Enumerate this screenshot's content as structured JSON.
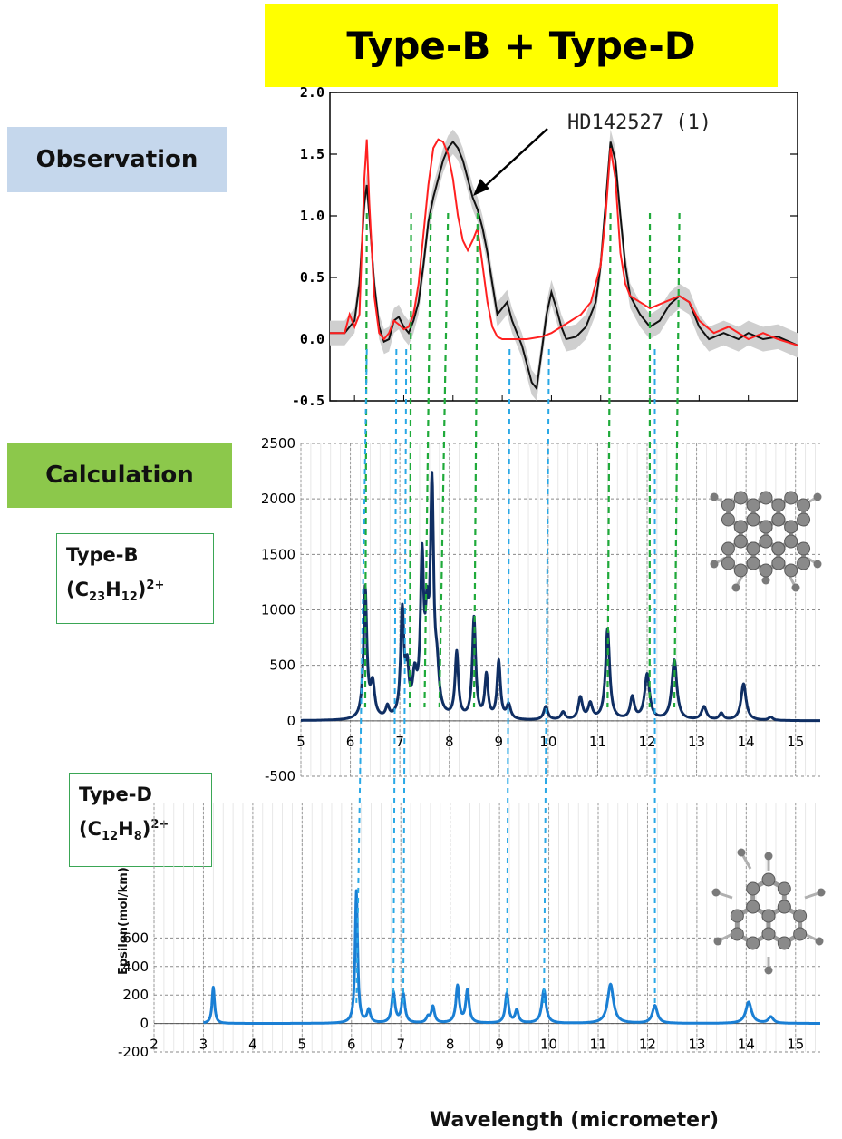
{
  "title": "Type-B +  Type-D",
  "labels": {
    "observation": "Observation",
    "calculation": "Calculation"
  },
  "molecules": {
    "type_b": {
      "name": "Type-B",
      "formula_c": "C",
      "c_count": "23",
      "formula_h": "H",
      "h_count": "12",
      "charge": "2+"
    },
    "type_d": {
      "name": "Type-D",
      "formula_c": "C",
      "c_count": "12",
      "formula_h": "H",
      "h_count": "8",
      "charge": "2+"
    }
  },
  "colors": {
    "banner": "#ffff00",
    "observation_bg": "#c5d7ec",
    "calculation_bg": "#8cc84b",
    "obs_black": "#111111",
    "obs_red": "#ff2020",
    "obs_band": "#cfcfcf",
    "type_b_line": "#0f2e63",
    "type_d_line": "#1a7fd4",
    "guide_green": "#1faa3a",
    "guide_blue": "#29a8e6"
  },
  "chart_data": [
    {
      "type": "line",
      "panel": "observation",
      "annotation": "HD142527 (1)",
      "xlim": [
        5.5,
        15.0
      ],
      "ylim": [
        -0.5,
        2.0
      ],
      "yticks": [
        "2.0",
        "1.5",
        "1.0",
        "0.5",
        "0.0",
        "-0.5"
      ],
      "ytick_values": [
        2.0,
        1.5,
        1.0,
        0.5,
        0.0,
        -0.5
      ],
      "series": [
        {
          "color": "black",
          "x": [
            5.5,
            5.8,
            6.0,
            6.1,
            6.2,
            6.25,
            6.3,
            6.4,
            6.5,
            6.6,
            6.7,
            6.8,
            6.9,
            7.0,
            7.1,
            7.2,
            7.3,
            7.4,
            7.5,
            7.6,
            7.7,
            7.8,
            7.9,
            8.0,
            8.1,
            8.2,
            8.3,
            8.4,
            8.5,
            8.6,
            8.7,
            8.8,
            8.9,
            9.0,
            9.1,
            9.2,
            9.3,
            9.4,
            9.5,
            9.6,
            9.7,
            9.8,
            9.9,
            10.0,
            10.1,
            10.2,
            10.3,
            10.5,
            10.7,
            10.9,
            11.0,
            11.1,
            11.2,
            11.3,
            11.4,
            11.5,
            11.6,
            11.8,
            12.0,
            12.2,
            12.4,
            12.6,
            12.8,
            13.0,
            13.2,
            13.5,
            13.8,
            14.0,
            14.3,
            14.6,
            15.0
          ],
          "y": [
            0.05,
            0.05,
            0.15,
            0.45,
            1.1,
            1.25,
            1.0,
            0.45,
            0.1,
            -0.02,
            0.0,
            0.15,
            0.18,
            0.1,
            0.05,
            0.15,
            0.3,
            0.6,
            0.95,
            1.15,
            1.3,
            1.45,
            1.55,
            1.6,
            1.55,
            1.45,
            1.3,
            1.15,
            1.05,
            0.9,
            0.7,
            0.45,
            0.2,
            0.25,
            0.3,
            0.15,
            0.05,
            -0.05,
            -0.2,
            -0.35,
            -0.4,
            -0.1,
            0.2,
            0.38,
            0.25,
            0.1,
            0.0,
            0.02,
            0.1,
            0.3,
            0.6,
            1.1,
            1.6,
            1.45,
            1.0,
            0.6,
            0.35,
            0.2,
            0.1,
            0.15,
            0.28,
            0.35,
            0.3,
            0.1,
            0.0,
            0.05,
            0.0,
            0.05,
            0.0,
            0.02,
            -0.05
          ]
        },
        {
          "color": "red",
          "x": [
            5.5,
            5.8,
            5.9,
            6.0,
            6.1,
            6.2,
            6.25,
            6.3,
            6.4,
            6.5,
            6.6,
            6.7,
            6.8,
            6.9,
            7.0,
            7.1,
            7.2,
            7.3,
            7.4,
            7.5,
            7.6,
            7.7,
            7.8,
            7.9,
            8.0,
            8.1,
            8.2,
            8.3,
            8.4,
            8.5,
            8.6,
            8.7,
            8.8,
            8.9,
            9.0,
            9.2,
            9.5,
            9.8,
            10.0,
            10.2,
            10.4,
            10.6,
            10.8,
            11.0,
            11.1,
            11.2,
            11.3,
            11.4,
            11.5,
            11.6,
            11.8,
            12.0,
            12.3,
            12.6,
            12.8,
            13.0,
            13.3,
            13.6,
            14.0,
            14.3,
            14.6,
            15.0
          ],
          "y": [
            0.05,
            0.05,
            0.2,
            0.1,
            0.2,
            1.3,
            1.62,
            1.1,
            0.35,
            0.05,
            0.0,
            0.05,
            0.15,
            0.12,
            0.08,
            0.1,
            0.2,
            0.45,
            0.85,
            1.25,
            1.55,
            1.62,
            1.6,
            1.5,
            1.3,
            1.0,
            0.8,
            0.72,
            0.8,
            0.9,
            0.6,
            0.3,
            0.1,
            0.02,
            0.0,
            0.0,
            0.0,
            0.02,
            0.05,
            0.1,
            0.15,
            0.2,
            0.3,
            0.6,
            1.0,
            1.55,
            1.3,
            0.7,
            0.45,
            0.35,
            0.3,
            0.25,
            0.3,
            0.35,
            0.3,
            0.15,
            0.05,
            0.1,
            0.0,
            0.05,
            0.0,
            -0.05
          ]
        }
      ]
    },
    {
      "type": "line",
      "panel": "type_b",
      "xlim": [
        5,
        15.5
      ],
      "ylim": [
        -500,
        2500
      ],
      "yticks": [
        "2500",
        "2000",
        "1500",
        "1000",
        "500",
        "0",
        "-500"
      ],
      "ytick_values": [
        2500,
        2000,
        1500,
        1000,
        500,
        0,
        -500
      ],
      "xticks": [
        "5",
        "6",
        "7",
        "8",
        "9",
        "10",
        "11",
        "12",
        "13",
        "14",
        "15"
      ],
      "peaks_x": [
        6.3,
        6.45,
        6.75,
        7.05,
        7.15,
        7.3,
        7.45,
        7.55,
        7.65,
        7.75,
        8.15,
        8.5,
        8.75,
        9.0,
        9.2,
        9.95,
        10.3,
        10.65,
        10.85,
        11.2,
        11.7,
        12.0,
        12.55,
        13.15,
        13.5,
        13.95,
        14.5
      ],
      "peaks_y": [
        1180,
        300,
        100,
        950,
        380,
        330,
        1360,
        700,
        2000,
        350,
        590,
        910,
        390,
        520,
        130,
        120,
        70,
        200,
        140,
        820,
        200,
        410,
        540,
        120,
        60,
        330,
        30
      ],
      "peaks_w": [
        0.04,
        0.05,
        0.04,
        0.04,
        0.04,
        0.05,
        0.04,
        0.04,
        0.04,
        0.05,
        0.04,
        0.04,
        0.04,
        0.04,
        0.05,
        0.05,
        0.05,
        0.05,
        0.05,
        0.05,
        0.05,
        0.06,
        0.06,
        0.06,
        0.05,
        0.06,
        0.05
      ]
    },
    {
      "type": "line",
      "panel": "type_d",
      "xlim": [
        2,
        15.5
      ],
      "ylim": [
        -200,
        800
      ],
      "yticks": [
        "600",
        "400",
        "200",
        "0",
        "-200"
      ],
      "ytick_values": [
        600,
        400,
        200,
        0,
        -200
      ],
      "xticks": [
        "2",
        "3",
        "4",
        "5",
        "6",
        "7",
        "8",
        "9",
        "10",
        "11",
        "12",
        "13",
        "14",
        "15"
      ],
      "xlabel": "Wavelength (micrometer)",
      "ylabel": "Epsilon(mol/km)",
      "peaks_x": [
        3.2,
        6.1,
        6.35,
        6.85,
        7.05,
        7.55,
        7.65,
        8.15,
        8.35,
        9.15,
        9.35,
        9.9,
        11.25,
        12.15,
        14.05,
        14.5
      ],
      "peaks_y": [
        255,
        930,
        90,
        215,
        205,
        40,
        115,
        260,
        230,
        210,
        90,
        235,
        275,
        125,
        150,
        45
      ],
      "peaks_w": [
        0.03,
        0.03,
        0.04,
        0.04,
        0.04,
        0.04,
        0.04,
        0.04,
        0.04,
        0.04,
        0.04,
        0.05,
        0.07,
        0.06,
        0.07,
        0.06
      ]
    }
  ]
}
